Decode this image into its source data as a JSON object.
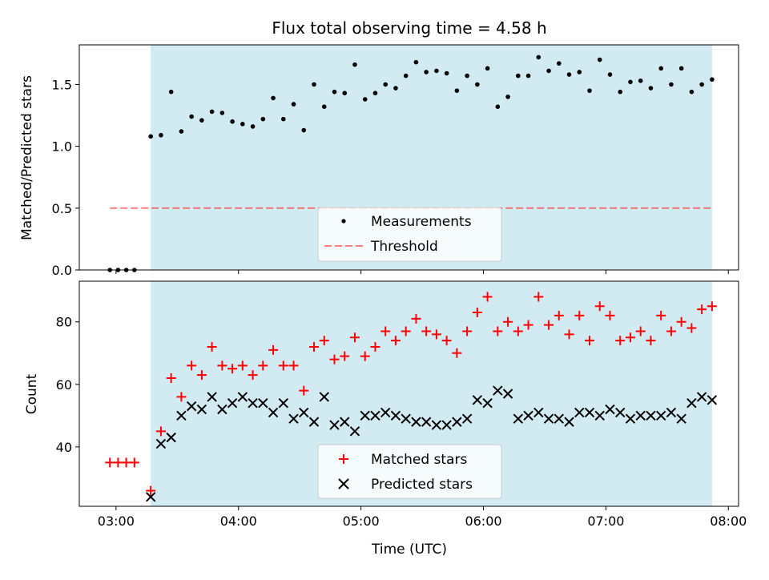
{
  "chart_data": [
    {
      "type": "scatter",
      "title": "Flux total observing time = 4.58 h",
      "xlabel": "",
      "ylabel": "Matched/Predicted stars",
      "xlim": [
        "02:42",
        "08:05"
      ],
      "ylim": [
        0,
        1.82
      ],
      "x_tick_labels": [
        "03:00",
        "04:00",
        "05:00",
        "06:00",
        "07:00",
        "08:00"
      ],
      "y_ticks": [
        0.0,
        0.5,
        1.0,
        1.5
      ],
      "y_tick_labels": [
        "0.0",
        "0.5",
        "1.0",
        "1.5"
      ],
      "shaded_interval": [
        "03:17",
        "07:52"
      ],
      "shade_color": "#add8e6",
      "threshold": {
        "name": "Threshold",
        "value": 0.5,
        "x_range": [
          "02:57",
          "07:52"
        ],
        "color": "#ff0000"
      },
      "legend_position": "lower center",
      "series": [
        {
          "name": "Measurements",
          "marker": "dot",
          "color": "#000000",
          "x": [
            "02:57",
            "03:01",
            "03:05",
            "03:09",
            "03:17",
            "03:22",
            "03:27",
            "03:32",
            "03:37",
            "03:42",
            "03:47",
            "03:52",
            "03:57",
            "04:02",
            "04:07",
            "04:12",
            "04:17",
            "04:22",
            "04:27",
            "04:32",
            "04:37",
            "04:42",
            "04:47",
            "04:52",
            "04:57",
            "05:02",
            "05:07",
            "05:12",
            "05:17",
            "05:22",
            "05:27",
            "05:32",
            "05:37",
            "05:42",
            "05:47",
            "05:52",
            "05:57",
            "06:02",
            "06:07",
            "06:12",
            "06:17",
            "06:22",
            "06:27",
            "06:32",
            "06:37",
            "06:42",
            "06:47",
            "06:52",
            "06:57",
            "07:02",
            "07:07",
            "07:12",
            "07:17",
            "07:22",
            "07:27",
            "07:32",
            "07:37",
            "07:42",
            "07:47",
            "07:52"
          ],
          "y": [
            0.0,
            0.0,
            0.0,
            0.0,
            1.08,
            1.09,
            1.44,
            1.12,
            1.24,
            1.21,
            1.28,
            1.27,
            1.2,
            1.18,
            1.16,
            1.22,
            1.39,
            1.22,
            1.34,
            1.13,
            1.5,
            1.32,
            1.44,
            1.43,
            1.66,
            1.38,
            1.43,
            1.5,
            1.47,
            1.57,
            1.68,
            1.6,
            1.61,
            1.59,
            1.45,
            1.57,
            1.5,
            1.63,
            1.32,
            1.4,
            1.57,
            1.57,
            1.72,
            1.61,
            1.67,
            1.58,
            1.6,
            1.45,
            1.7,
            1.58,
            1.44,
            1.52,
            1.53,
            1.47,
            1.63,
            1.5,
            1.63,
            1.44,
            1.5,
            1.54
          ]
        }
      ]
    },
    {
      "type": "scatter",
      "title": "",
      "xlabel": "Time (UTC)",
      "ylabel": "Count",
      "xlim": [
        "02:42",
        "08:05"
      ],
      "ylim": [
        21,
        93
      ],
      "x_tick_labels": [
        "03:00",
        "04:00",
        "05:00",
        "06:00",
        "07:00",
        "08:00"
      ],
      "y_ticks": [
        40,
        60,
        80
      ],
      "y_tick_labels": [
        "40",
        "60",
        "80"
      ],
      "shaded_interval": [
        "03:17",
        "07:52"
      ],
      "shade_color": "#add8e6",
      "legend_position": "lower center",
      "series": [
        {
          "name": "Matched stars",
          "marker": "plus",
          "color": "#ff0000",
          "x": [
            "02:57",
            "03:01",
            "03:05",
            "03:09",
            "03:17",
            "03:22",
            "03:27",
            "03:32",
            "03:37",
            "03:42",
            "03:47",
            "03:52",
            "03:57",
            "04:02",
            "04:07",
            "04:12",
            "04:17",
            "04:22",
            "04:27",
            "04:32",
            "04:37",
            "04:42",
            "04:47",
            "04:52",
            "04:57",
            "05:02",
            "05:07",
            "05:12",
            "05:17",
            "05:22",
            "05:27",
            "05:32",
            "05:37",
            "05:42",
            "05:47",
            "05:52",
            "05:57",
            "06:02",
            "06:07",
            "06:12",
            "06:17",
            "06:22",
            "06:27",
            "06:32",
            "06:37",
            "06:42",
            "06:47",
            "06:52",
            "06:57",
            "07:02",
            "07:07",
            "07:12",
            "07:17",
            "07:22",
            "07:27",
            "07:32",
            "07:37",
            "07:42",
            "07:47",
            "07:52"
          ],
          "y": [
            35,
            35,
            35,
            35,
            26,
            45,
            62,
            56,
            66,
            63,
            72,
            66,
            65,
            66,
            63,
            66,
            71,
            66,
            66,
            58,
            72,
            74,
            68,
            69,
            75,
            69,
            72,
            77,
            74,
            77,
            81,
            77,
            76,
            74,
            70,
            77,
            83,
            88,
            77,
            80,
            77,
            79,
            88,
            79,
            82,
            76,
            82,
            74,
            85,
            82,
            74,
            75,
            77,
            74,
            82,
            77,
            80,
            78,
            84,
            85
          ]
        },
        {
          "name": "Predicted stars",
          "marker": "x",
          "color": "#000000",
          "x": [
            "03:17",
            "03:22",
            "03:27",
            "03:32",
            "03:37",
            "03:42",
            "03:47",
            "03:52",
            "03:57",
            "04:02",
            "04:07",
            "04:12",
            "04:17",
            "04:22",
            "04:27",
            "04:32",
            "04:37",
            "04:42",
            "04:47",
            "04:52",
            "04:57",
            "05:02",
            "05:07",
            "05:12",
            "05:17",
            "05:22",
            "05:27",
            "05:32",
            "05:37",
            "05:42",
            "05:47",
            "05:52",
            "05:57",
            "06:02",
            "06:07",
            "06:12",
            "06:17",
            "06:22",
            "06:27",
            "06:32",
            "06:37",
            "06:42",
            "06:47",
            "06:52",
            "06:57",
            "07:02",
            "07:07",
            "07:12",
            "07:17",
            "07:22",
            "07:27",
            "07:32",
            "07:37",
            "07:42",
            "07:47",
            "07:52"
          ],
          "y": [
            24,
            41,
            43,
            50,
            53,
            52,
            56,
            52,
            54,
            56,
            54,
            54,
            51,
            54,
            49,
            51,
            48,
            56,
            47,
            48,
            45,
            50,
            50,
            51,
            50,
            49,
            48,
            48,
            47,
            47,
            48,
            49,
            55,
            54,
            58,
            57,
            49,
            50,
            51,
            49,
            49,
            48,
            51,
            51,
            50,
            52,
            51,
            49,
            50,
            50,
            50,
            51,
            49,
            54,
            56,
            55
          ]
        }
      ]
    }
  ]
}
